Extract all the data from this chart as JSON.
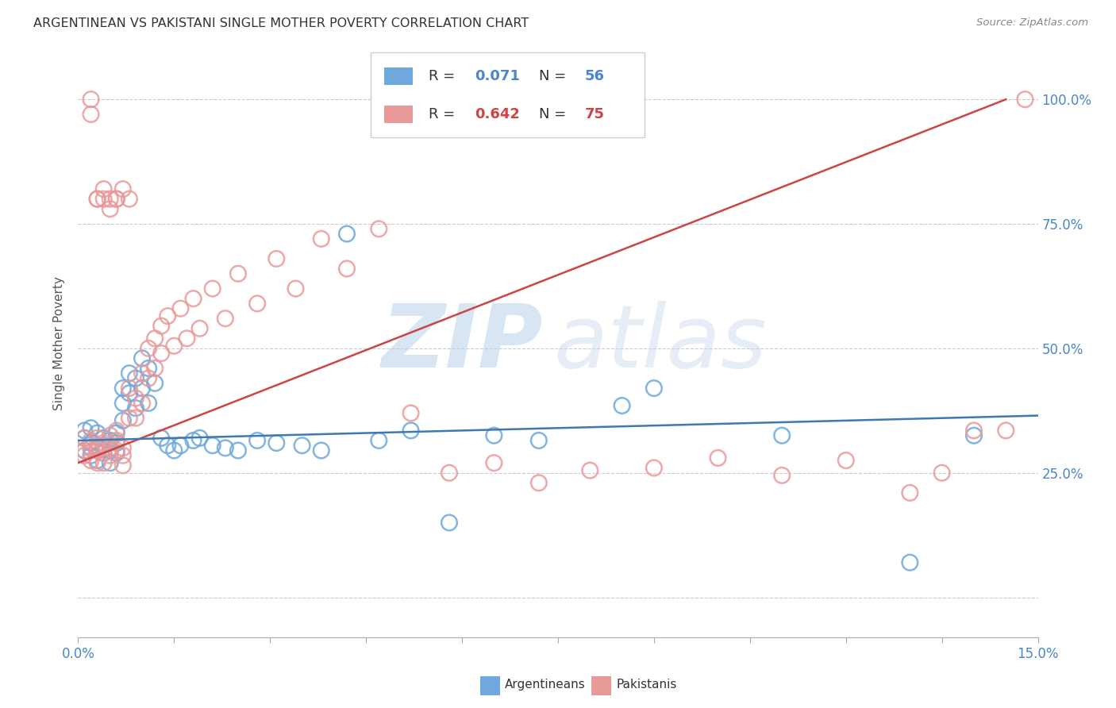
{
  "title": "ARGENTINEAN VS PAKISTANI SINGLE MOTHER POVERTY CORRELATION CHART",
  "source": "Source: ZipAtlas.com",
  "ylabel": "Single Mother Poverty",
  "legend_R_blue": "0.071",
  "legend_N_blue": "56",
  "legend_R_pink": "0.642",
  "legend_N_pink": "75",
  "legend_label_blue": "Argentineans",
  "legend_label_pink": "Pakistanis",
  "color_blue": "#6fa8dc",
  "color_pink": "#ea9999",
  "color_blue_line": "#3d7ab5",
  "color_pink_line": "#cc4444",
  "blue_scatter_x": [
    0.001,
    0.001,
    0.001,
    0.002,
    0.002,
    0.002,
    0.002,
    0.003,
    0.003,
    0.003,
    0.003,
    0.004,
    0.004,
    0.004,
    0.005,
    0.005,
    0.005,
    0.006,
    0.006,
    0.006,
    0.007,
    0.007,
    0.007,
    0.008,
    0.008,
    0.009,
    0.009,
    0.01,
    0.01,
    0.011,
    0.011,
    0.012,
    0.013,
    0.014,
    0.015,
    0.016,
    0.018,
    0.019,
    0.021,
    0.023,
    0.025,
    0.028,
    0.031,
    0.035,
    0.038,
    0.042,
    0.047,
    0.052,
    0.058,
    0.065,
    0.072,
    0.085,
    0.09,
    0.11,
    0.13,
    0.14
  ],
  "blue_scatter_y": [
    0.335,
    0.32,
    0.295,
    0.34,
    0.31,
    0.3,
    0.285,
    0.33,
    0.295,
    0.3,
    0.275,
    0.32,
    0.305,
    0.29,
    0.315,
    0.295,
    0.27,
    0.33,
    0.31,
    0.29,
    0.42,
    0.39,
    0.355,
    0.45,
    0.41,
    0.44,
    0.38,
    0.48,
    0.42,
    0.46,
    0.39,
    0.43,
    0.32,
    0.305,
    0.295,
    0.305,
    0.315,
    0.32,
    0.305,
    0.3,
    0.295,
    0.315,
    0.31,
    0.305,
    0.295,
    0.73,
    0.315,
    0.335,
    0.15,
    0.325,
    0.315,
    0.385,
    0.42,
    0.325,
    0.07,
    0.325
  ],
  "pink_scatter_x": [
    0.001,
    0.001,
    0.001,
    0.002,
    0.002,
    0.002,
    0.003,
    0.003,
    0.003,
    0.003,
    0.004,
    0.004,
    0.004,
    0.005,
    0.005,
    0.005,
    0.006,
    0.006,
    0.006,
    0.007,
    0.007,
    0.007,
    0.008,
    0.008,
    0.009,
    0.009,
    0.01,
    0.01,
    0.011,
    0.011,
    0.012,
    0.012,
    0.013,
    0.013,
    0.014,
    0.015,
    0.016,
    0.017,
    0.018,
    0.019,
    0.021,
    0.023,
    0.025,
    0.028,
    0.031,
    0.034,
    0.038,
    0.042,
    0.047,
    0.052,
    0.058,
    0.065,
    0.072,
    0.08,
    0.09,
    0.1,
    0.11,
    0.12,
    0.13,
    0.135,
    0.14,
    0.145,
    0.148,
    0.003,
    0.004,
    0.005,
    0.006,
    0.007,
    0.008,
    0.002,
    0.002,
    0.003,
    0.004,
    0.005,
    0.006
  ],
  "pink_scatter_y": [
    0.32,
    0.295,
    0.285,
    0.315,
    0.3,
    0.275,
    0.305,
    0.32,
    0.295,
    0.27,
    0.31,
    0.29,
    0.27,
    0.325,
    0.3,
    0.285,
    0.335,
    0.315,
    0.295,
    0.3,
    0.285,
    0.265,
    0.42,
    0.36,
    0.4,
    0.36,
    0.45,
    0.39,
    0.5,
    0.44,
    0.52,
    0.46,
    0.545,
    0.49,
    0.565,
    0.505,
    0.58,
    0.52,
    0.6,
    0.54,
    0.62,
    0.56,
    0.65,
    0.59,
    0.68,
    0.62,
    0.72,
    0.66,
    0.74,
    0.37,
    0.25,
    0.27,
    0.23,
    0.255,
    0.26,
    0.28,
    0.245,
    0.275,
    0.21,
    0.25,
    0.335,
    0.335,
    1.0,
    0.8,
    0.82,
    0.78,
    0.8,
    0.82,
    0.8,
    0.97,
    1.0,
    0.8,
    0.8,
    0.8,
    0.8
  ]
}
